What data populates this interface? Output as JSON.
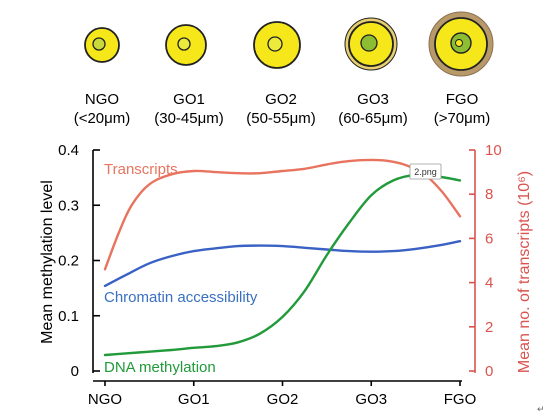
{
  "stages": [
    {
      "name": "NGO",
      "size": "(<20μm)"
    },
    {
      "name": "GO1",
      "size": "(30-45μm)"
    },
    {
      "name": "GO2",
      "size": "(50-55μm)"
    },
    {
      "name": "GO3",
      "size": "(60-65μm)"
    },
    {
      "name": "FGO",
      "size": "(>70μm)"
    }
  ],
  "tooltip": "2.png",
  "corner_mark": "↵",
  "colors": {
    "oocyte_yellow": "#f5e71a",
    "nucleus_green": "#8dbd32",
    "zona_brown": "#b89a6a",
    "outline": "#222222",
    "right_axis": "#d9534f"
  },
  "chart_data": {
    "type": "line",
    "categories": [
      "NGO",
      "GO1",
      "GO2",
      "GO3",
      "FGO"
    ],
    "xlabel": "",
    "ylabel_left": "Mean methylation level",
    "ylabel_right": "Mean no. of transcripts (10⁶)",
    "ylim_left": [
      0,
      0.4
    ],
    "yticks_left": [
      "0",
      "0.1",
      "0.2",
      "0.3",
      "0.4"
    ],
    "ylim_right": [
      0,
      10
    ],
    "yticks_right": [
      "0",
      "2",
      "4",
      "6",
      "8",
      "10"
    ],
    "series": [
      {
        "name": "Transcripts",
        "axis": "right",
        "color": "#e8745f",
        "x": [
          0,
          0.15,
          0.3,
          0.5,
          0.75,
          1,
          1.25,
          1.5,
          1.75,
          2,
          2.25,
          2.5,
          2.75,
          3,
          3.2,
          3.4,
          3.6,
          3.8,
          4
        ],
        "values": [
          4.6,
          6.2,
          7.5,
          8.45,
          8.9,
          9.05,
          9.0,
          8.95,
          8.95,
          9.05,
          9.15,
          9.35,
          9.5,
          9.55,
          9.5,
          9.3,
          8.9,
          8.1,
          7.0
        ]
      },
      {
        "name": "Chromatin accessibility",
        "axis": "left",
        "color": "#3a62c4",
        "x": [
          0,
          0.25,
          0.5,
          0.75,
          1,
          1.25,
          1.5,
          1.75,
          2,
          2.25,
          2.5,
          2.75,
          3,
          3.25,
          3.5,
          3.75,
          4
        ],
        "values": [
          0.154,
          0.175,
          0.195,
          0.208,
          0.217,
          0.222,
          0.226,
          0.227,
          0.226,
          0.223,
          0.22,
          0.217,
          0.216,
          0.217,
          0.221,
          0.227,
          0.235
        ]
      },
      {
        "name": "DNA methylation",
        "axis": "left",
        "color": "#219a3a",
        "x": [
          0,
          0.25,
          0.5,
          0.75,
          1,
          1.25,
          1.5,
          1.75,
          2,
          2.25,
          2.5,
          2.75,
          3,
          3.25,
          3.5,
          3.75,
          4
        ],
        "values": [
          0.029,
          0.032,
          0.035,
          0.038,
          0.042,
          0.045,
          0.052,
          0.068,
          0.098,
          0.145,
          0.21,
          0.268,
          0.318,
          0.345,
          0.355,
          0.352,
          0.345
        ]
      }
    ]
  }
}
